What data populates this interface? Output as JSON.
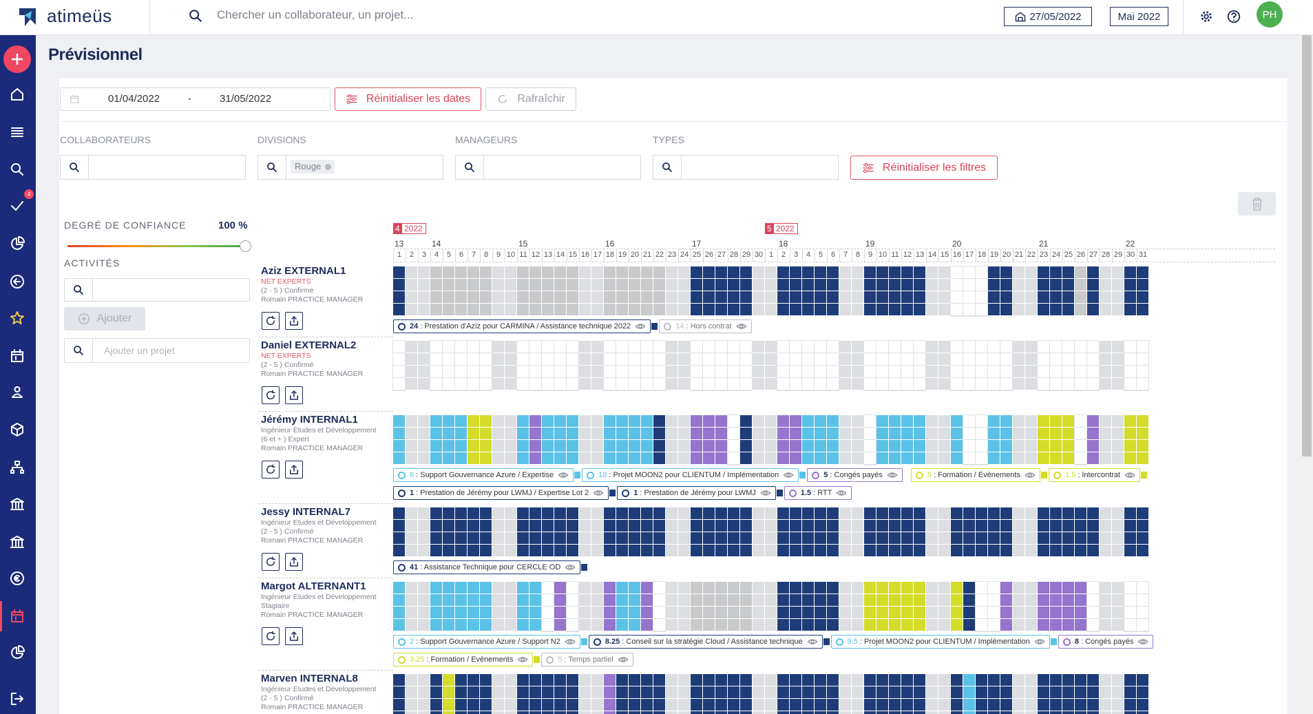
{
  "header": {
    "logo": "atimeüs",
    "search_placeholder": "Chercher un collaborateur, un projet...",
    "date": "27/05/2022",
    "month": "Mai 2022",
    "avatar": "PH"
  },
  "sidebar": {
    "badge": 4
  },
  "page": {
    "title": "Prévisionnel",
    "date_from": "01/04/2022",
    "date_sep": "-",
    "date_to": "31/05/2022",
    "reset_dates": "Réinitialiser les dates",
    "refresh": "Rafraîchir"
  },
  "filters": {
    "labels": [
      "COLLABORATEURS",
      "DIVISIONS",
      "MANAGEURS",
      "TYPES"
    ],
    "division_chip": "Rouge",
    "reset_filters": "Réinitialiser les filtres"
  },
  "panel": {
    "confidence_label": "DEGRÉ DE CONFIANCE",
    "confidence": "100 %",
    "activities_label": "ACTIVITÉS",
    "add": "Ajouter",
    "add_project_placeholder": "Ajouter un projet"
  },
  "calendar": {
    "months": [
      {
        "month": "4",
        "year": "2022",
        "days": [
          1,
          2,
          3,
          4,
          5,
          6,
          7,
          8,
          9,
          10,
          11,
          12,
          13,
          14,
          15,
          16,
          17,
          18,
          19,
          20,
          21,
          22,
          23,
          24,
          25,
          26,
          27,
          28,
          29,
          30
        ]
      },
      {
        "month": "5",
        "year": "2022",
        "days": [
          1,
          2,
          3,
          4,
          5,
          6,
          7,
          8,
          9,
          10,
          11,
          12,
          13,
          14,
          15,
          16,
          17,
          18,
          19,
          20,
          21,
          22,
          23,
          24,
          25,
          26,
          27,
          28,
          29,
          30,
          31
        ]
      }
    ],
    "weeks": [
      13,
      14,
      15,
      16,
      17,
      18,
      19,
      20,
      21,
      22
    ]
  },
  "people": [
    {
      "name": "Aziz EXTERNAL1",
      "company": "NET EXPERTS",
      "lines": [
        "(2 - 5 ) Confirmé",
        "Romain PRACTICE MANAGER"
      ],
      "chips": [
        [
          {
            "value": 24,
            "label": ": Prestation d'Aziz pour CARMINA / Assistance technique 2022",
            "color": "#1e3c78"
          },
          {
            "value": 14,
            "label": ": Hors contrat",
            "color": "#b9bcc0"
          }
        ]
      ]
    },
    {
      "name": "Daniel EXTERNAL2",
      "company": "NET EXPERTS",
      "lines": [
        "(2 - 5 ) Confirmé",
        "Romain PRACTICE MANAGER"
      ],
      "chips": []
    },
    {
      "name": "Jérémy INTERNAL1",
      "lines": [
        "Ingénieur Etudes et Développement",
        "(6 et + ) Expert",
        "Romain PRACTICE MANAGER"
      ],
      "chips": [
        [
          {
            "value": 6,
            "label": ": Support Gouvernance Azure / Expertise",
            "color": "#5bc2e7"
          },
          {
            "value": 18,
            "label": ": Projet MOON2 pour CLIENTUM / Implémentation",
            "color": "#5bc2e7"
          },
          {
            "value": 5,
            "label": ": Congés payés",
            "color": "#9575cd"
          },
          {
            "value": 5,
            "label": ": Formation / Evènements",
            "color": "#d4dc2a"
          },
          {
            "value": 1.5,
            "label": ": Intercontrat",
            "color": "#d4dc2a"
          }
        ],
        [
          {
            "value": 1,
            "label": ": Prestation de Jérémy pour LWMJ / Expertise Lot 2",
            "color": "#1e3c78"
          },
          {
            "value": 1,
            "label": ": Prestation de Jérémy pour LWMJ",
            "color": "#1e3c78"
          },
          {
            "value": 1.5,
            "label": ": RTT",
            "color": "#9575cd"
          }
        ]
      ]
    },
    {
      "name": "Jessy INTERNAL7",
      "lines": [
        "Ingénieur Etudes et Développement",
        "(2 - 5 ) Confirmé",
        "Romain PRACTICE MANAGER"
      ],
      "chips": [
        [
          {
            "value": 41,
            "label": ": Assistance Technique pour CERCLE OD",
            "color": "#1e3c78"
          }
        ]
      ]
    },
    {
      "name": "Margot ALTERNANT1",
      "lines": [
        "Ingénieur Etudes et Développement",
        "Stagiaire",
        "Romain PRACTICE MANAGER"
      ],
      "chips": [
        [
          {
            "value": 2,
            "label": ": Support Gouvernance Azure / Support N2",
            "color": "#5bc2e7"
          },
          {
            "value": 8.25,
            "label": ": Conseil sur la stratégie Cloud / Assistance technique",
            "color": "#1e3c78"
          },
          {
            "value": 9.5,
            "label": ": Projet MOON2 pour CLIENTUM / Implémentation",
            "color": "#5bc2e7"
          },
          {
            "value": 8,
            "label": ": Congés payés",
            "color": "#9575cd"
          }
        ],
        [
          {
            "value": 3.25,
            "label": ": Formation / Evènements",
            "color": "#d4dc2a"
          },
          {
            "value": 5,
            "label": ": Temps partiel",
            "color": "#b9bcc0"
          }
        ]
      ]
    },
    {
      "name": "Marven INTERNAL8",
      "lines": [
        "Ingénieur Etudes et Développement",
        "(2 - 5 ) Confirmé",
        "Romain PRACTICE MANAGER"
      ],
      "chips": []
    }
  ]
}
